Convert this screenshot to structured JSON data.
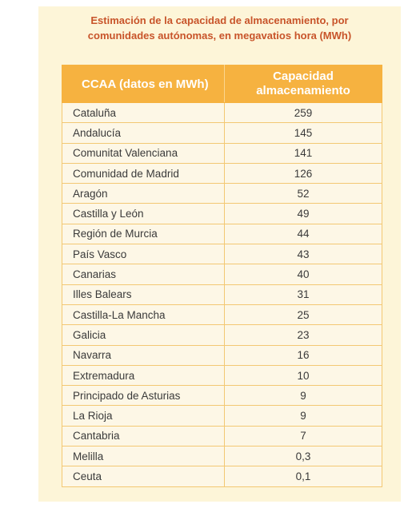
{
  "title": {
    "line1": "Estimación de la capacidad de almacenamiento, por",
    "line2": "comunidades autónomas, en megavatios hora (MWh)"
  },
  "header": {
    "col1": "CCAA (datos en MWh)",
    "col2_line1": "Capacidad",
    "col2_line2": "almacenamiento"
  },
  "colors": {
    "title": "#c8542a",
    "header_bg": "#f6b240",
    "panel_bg": "#fdf5d8",
    "grid": "#f3c873"
  },
  "chart_data": {
    "type": "table",
    "title": "Estimación de la capacidad de almacenamiento, por comunidades autónomas, en megavatios hora (MWh)",
    "columns": [
      "CCAA (datos en MWh)",
      "Capacidad almacenamiento"
    ],
    "rows": [
      {
        "name": "Cataluña",
        "value": "259"
      },
      {
        "name": "Andalucía",
        "value": "145"
      },
      {
        "name": "Comunitat Valenciana",
        "value": "141"
      },
      {
        "name": "Comunidad de Madrid",
        "value": "126"
      },
      {
        "name": "Aragón",
        "value": "52"
      },
      {
        "name": "Castilla y León",
        "value": "49"
      },
      {
        "name": "Región de Murcia",
        "value": "44"
      },
      {
        "name": "País Vasco",
        "value": "43"
      },
      {
        "name": "Canarias",
        "value": "40"
      },
      {
        "name": "Illes Balears",
        "value": "31"
      },
      {
        "name": "Castilla-La Mancha",
        "value": "25"
      },
      {
        "name": "Galicia",
        "value": "23"
      },
      {
        "name": "Navarra",
        "value": "16"
      },
      {
        "name": "Extremadura",
        "value": "10"
      },
      {
        "name": "Principado de Asturias",
        "value": "9"
      },
      {
        "name": "La Rioja",
        "value": "9"
      },
      {
        "name": "Cantabria",
        "value": "7"
      },
      {
        "name": "Melilla",
        "value": "0,3"
      },
      {
        "name": "Ceuta",
        "value": "0,1"
      }
    ]
  }
}
